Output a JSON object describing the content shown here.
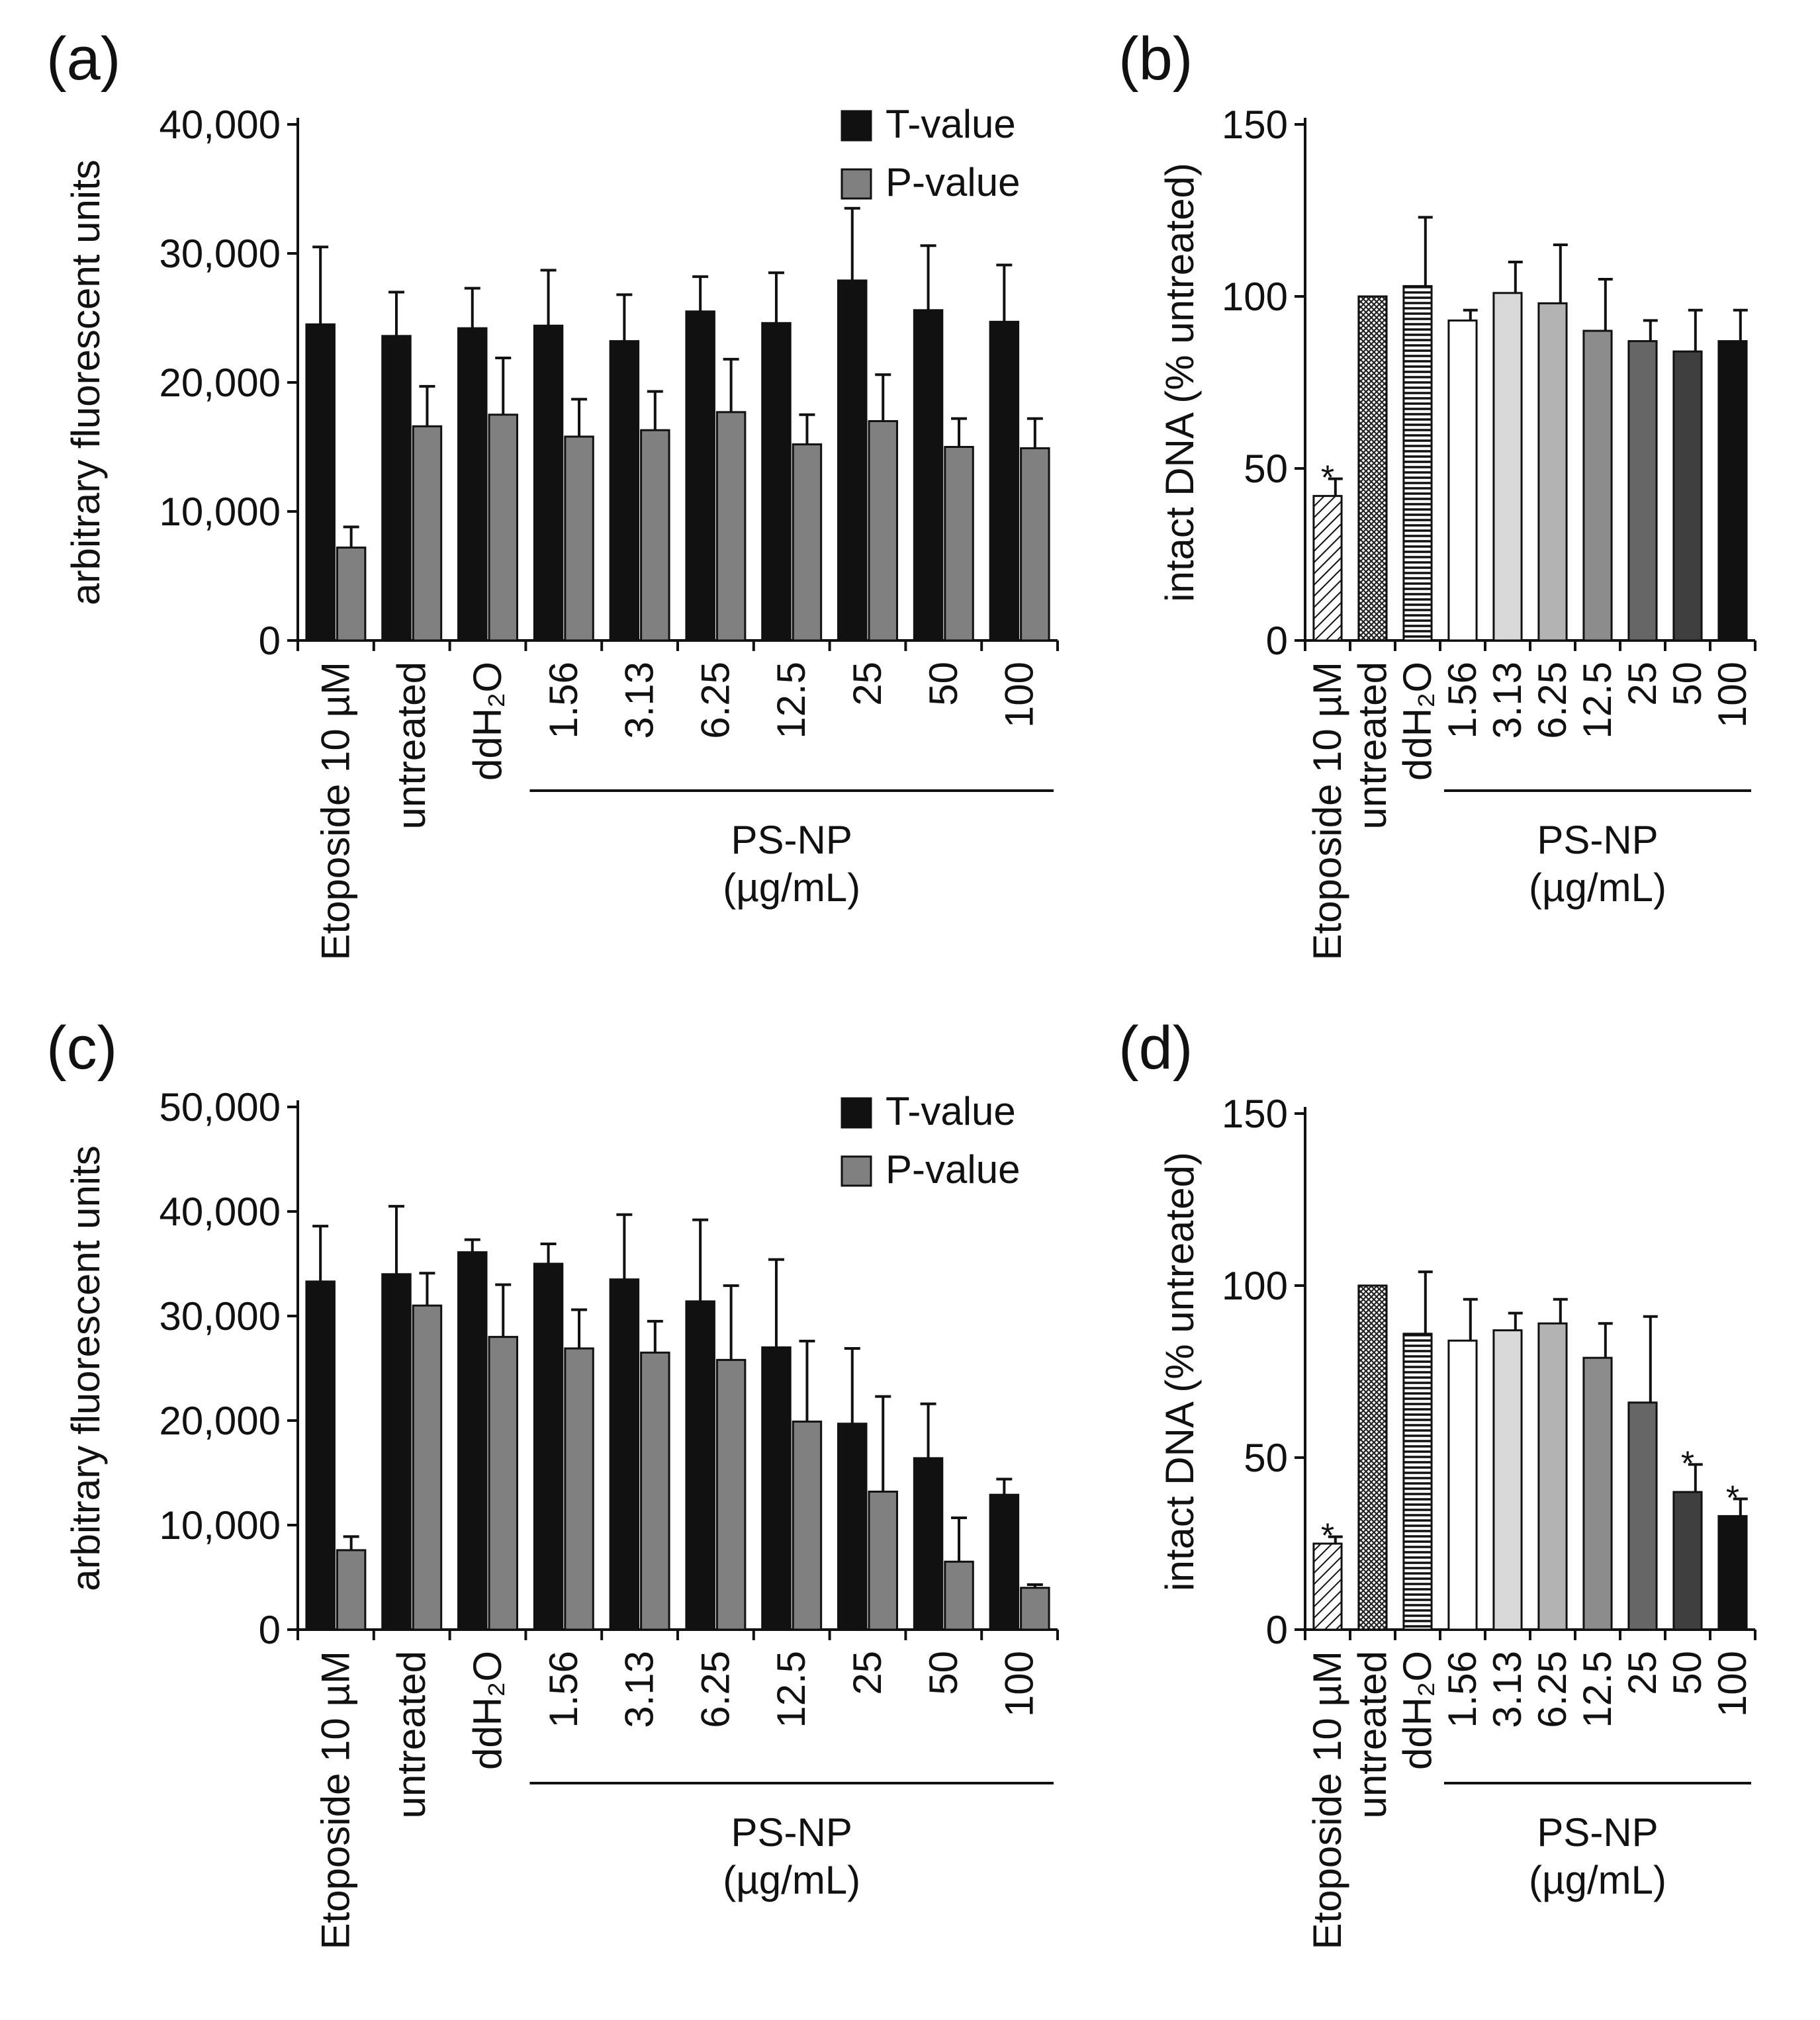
{
  "chart_data": [
    {
      "panel": "(a)",
      "type": "bar",
      "ylabel": "arbitrary fluorescent units",
      "ylim": [
        0,
        40000
      ],
      "yticks": [
        0,
        10000,
        20000,
        30000,
        40000
      ],
      "ytick_labels": [
        "0",
        "10,000",
        "20,000",
        "30,000",
        "40,000"
      ],
      "categories": [
        "Etoposide 10 µM",
        "untreated",
        "ddH₂O",
        "1.56",
        "3.13",
        "6.25",
        "12.5",
        "25",
        "50",
        "100"
      ],
      "group_label": [
        "PS-NP",
        "(µg/mL)"
      ],
      "group_span": [
        3,
        9
      ],
      "legend": {
        "position": "top-right"
      },
      "series": [
        {
          "name": "T-value",
          "color": "#111111",
          "values": [
            24500,
            23600,
            24200,
            24400,
            23200,
            25500,
            24600,
            27900,
            25600,
            24700
          ],
          "errors": [
            6000,
            3400,
            3100,
            4300,
            3600,
            2700,
            3900,
            5600,
            5000,
            4400
          ]
        },
        {
          "name": "P-value",
          "color": "#808080",
          "values": [
            7200,
            16600,
            17500,
            15800,
            16300,
            17700,
            15200,
            17000,
            15000,
            14900
          ],
          "errors": [
            1600,
            3100,
            4400,
            2900,
            3000,
            4100,
            2300,
            3600,
            2200,
            2300
          ]
        }
      ]
    },
    {
      "panel": "(b)",
      "type": "bar",
      "ylabel": "intact DNA (% untreated)",
      "ylim": [
        0,
        150
      ],
      "yticks": [
        0,
        50,
        100,
        150
      ],
      "ytick_labels": [
        "0",
        "50",
        "100",
        "150"
      ],
      "categories": [
        "Etoposide 10 µM",
        "untreated",
        "ddH₂O",
        "1.56",
        "3.13",
        "6.25",
        "12.5",
        "25",
        "50",
        "100"
      ],
      "group_label": [
        "PS-NP",
        "(µg/mL)"
      ],
      "group_span": [
        3,
        9
      ],
      "values": [
        42,
        100,
        103,
        93,
        101,
        98,
        90,
        87,
        84,
        87
      ],
      "errors": [
        5,
        0,
        20,
        3,
        9,
        17,
        15,
        6,
        12,
        9
      ],
      "significant": [
        true,
        false,
        false,
        false,
        false,
        false,
        false,
        false,
        false,
        false
      ],
      "bar_styles": [
        "diag",
        "cross",
        "hstripe",
        "#ffffff",
        "#d9d9d9",
        "#b3b3b3",
        "#8c8c8c",
        "#666666",
        "#3f3f3f",
        "#111111"
      ]
    },
    {
      "panel": "(c)",
      "type": "bar",
      "ylabel": "arbitrary fluorescent units",
      "ylim": [
        0,
        50000
      ],
      "yticks": [
        0,
        10000,
        20000,
        30000,
        40000,
        50000
      ],
      "ytick_labels": [
        "0",
        "10,000",
        "20,000",
        "30,000",
        "40,000",
        "50,000"
      ],
      "categories": [
        "Etoposide 10 µM",
        "untreated",
        "ddH₂O",
        "1.56",
        "3.13",
        "6.25",
        "12.5",
        "25",
        "50",
        "100"
      ],
      "group_label": [
        "PS-NP",
        "(µg/mL)"
      ],
      "group_span": [
        3,
        9
      ],
      "legend": {
        "position": "top-right"
      },
      "series": [
        {
          "name": "T-value",
          "color": "#111111",
          "values": [
            33300,
            34000,
            36100,
            35000,
            33500,
            31400,
            27000,
            19700,
            16400,
            12900
          ],
          "errors": [
            5300,
            6500,
            1200,
            1900,
            6200,
            7800,
            8400,
            7200,
            5200,
            1500
          ]
        },
        {
          "name": "P-value",
          "color": "#808080",
          "values": [
            7600,
            31000,
            28000,
            26900,
            26500,
            25800,
            19900,
            13200,
            6500,
            4000
          ],
          "errors": [
            1300,
            3100,
            5000,
            3700,
            3000,
            7100,
            7700,
            9100,
            4200,
            300
          ]
        }
      ]
    },
    {
      "panel": "(d)",
      "type": "bar",
      "ylabel": "intact DNA (% untreated)",
      "ylim": [
        0,
        150
      ],
      "yticks": [
        0,
        50,
        100,
        150
      ],
      "ytick_labels": [
        "0",
        "50",
        "100",
        "150"
      ],
      "categories": [
        "Etoposide 10 µM",
        "untreated",
        "ddH₂O",
        "1.56",
        "3.13",
        "6.25",
        "12.5",
        "25",
        "50",
        "100"
      ],
      "group_label": [
        "PS-NP",
        "(µg/mL)"
      ],
      "group_span": [
        3,
        9
      ],
      "values": [
        25,
        100,
        86,
        84,
        87,
        89,
        79,
        66,
        40,
        33
      ],
      "errors": [
        2,
        0,
        18,
        12,
        5,
        7,
        10,
        25,
        8,
        5
      ],
      "significant": [
        true,
        false,
        false,
        false,
        false,
        false,
        false,
        false,
        true,
        true
      ],
      "bar_styles": [
        "diag",
        "cross",
        "hstripe",
        "#ffffff",
        "#d9d9d9",
        "#b3b3b3",
        "#8c8c8c",
        "#666666",
        "#3f3f3f",
        "#111111"
      ]
    }
  ]
}
